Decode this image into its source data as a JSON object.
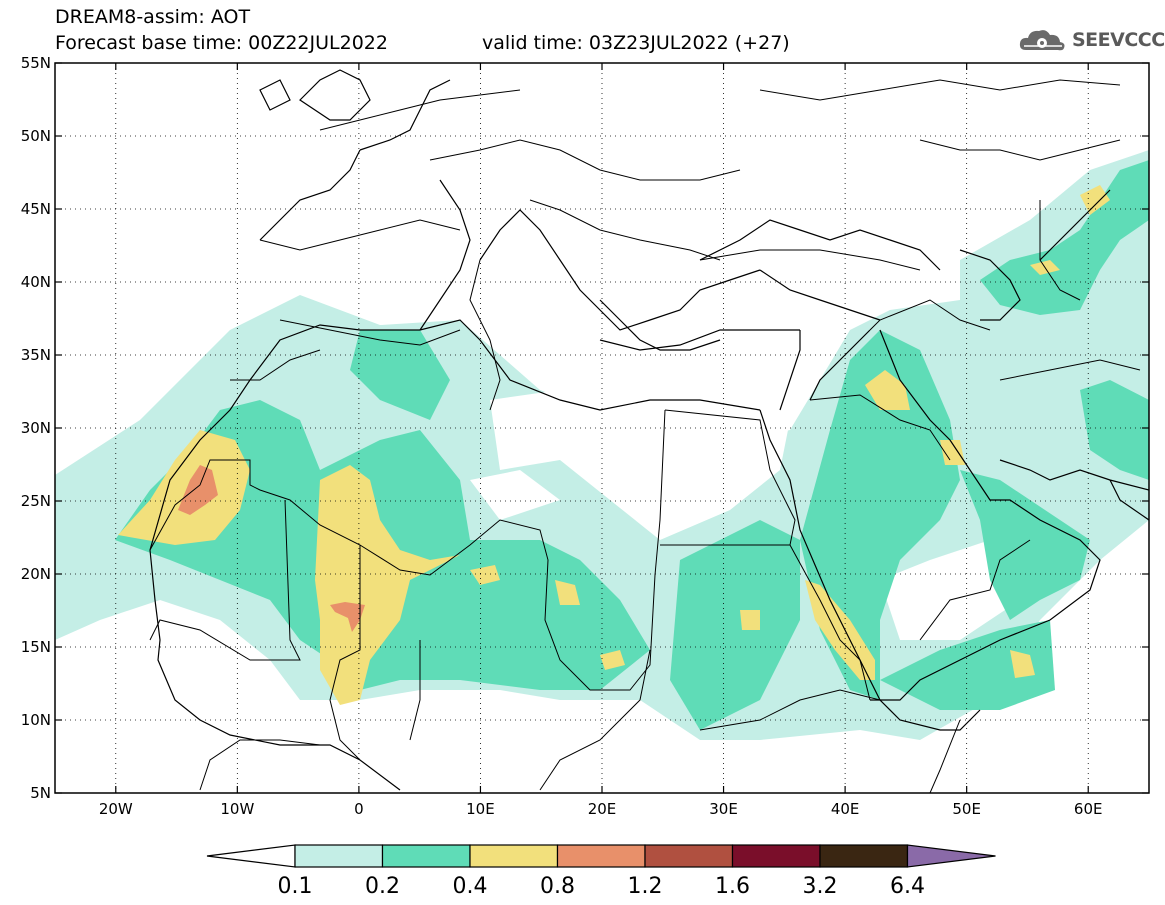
{
  "header": {
    "title_line1": "DREAM8-assim: AOT",
    "title_line2": "Forecast base time: 00Z22JUL2022",
    "valid_time": "valid time: 03Z23JUL2022 (+27)"
  },
  "logo": {
    "icon": "cloud-gear-icon",
    "text": "SEEVCCC"
  },
  "map": {
    "lat_labels": [
      "55N",
      "50N",
      "45N",
      "40N",
      "35N",
      "30N",
      "25N",
      "20N",
      "15N",
      "10N",
      "5N"
    ],
    "lon_labels": [
      "20W",
      "10W",
      "0",
      "10E",
      "20E",
      "30E",
      "40E",
      "50E",
      "60E"
    ],
    "lon_range": [
      -25,
      65
    ],
    "lat_range": [
      5,
      55
    ]
  },
  "colorbar": {
    "labels": [
      "0.1",
      "0.2",
      "0.4",
      "0.8",
      "1.2",
      "1.6",
      "3.2",
      "6.4"
    ],
    "colors": [
      "#c4eee6",
      "#5fdcb7",
      "#f2e07c",
      "#e8906a",
      "#b05040",
      "#7a0e2a",
      "#3a2612",
      "#8a6aa8"
    ]
  }
}
